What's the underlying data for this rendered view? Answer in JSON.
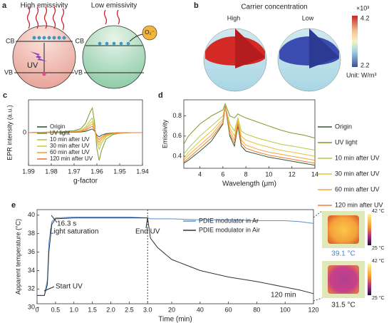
{
  "panels": {
    "a": {
      "label": "a",
      "left_title": "High emissivity",
      "right_title": "Low emissivity",
      "cb_left": "CB",
      "vb_left": "VB",
      "uv": "UV",
      "cb_right": "CB",
      "vb_right": "VB",
      "species": "O₂⁻"
    },
    "b": {
      "label": "b",
      "title": "Carrier concentration",
      "left": "High",
      "right": "Low",
      "scale": "×10³",
      "max": "4.2",
      "min": "2.2",
      "unit": "Unit: W/m³"
    }
  },
  "chart_data": [
    {
      "type": "line",
      "panel_label": "c",
      "xlabel": "g-factor",
      "ylabel": "EPR intensity (a.u.)",
      "x": [
        1.99,
        1.985,
        1.98,
        1.975,
        1.97,
        1.967,
        1.965,
        1.963,
        1.962,
        1.961,
        1.96,
        1.959,
        1.958,
        1.956,
        1.953,
        1.95,
        1.945,
        1.94
      ],
      "xlim": [
        1.99,
        1.94
      ],
      "xticks": [
        1.99,
        1.98,
        1.97,
        1.96,
        1.95,
        1.94
      ],
      "ylim": [
        -1,
        1
      ],
      "yticks": [
        0
      ],
      "series": [
        {
          "name": "Origin",
          "color": "#2d5a35",
          "values": [
            0,
            0,
            0,
            0,
            0.01,
            0.02,
            0.04,
            0.09,
            0.11,
            0.05,
            -0.08,
            -0.13,
            -0.08,
            -0.03,
            -0.01,
            0,
            0,
            0
          ]
        },
        {
          "name": "UV light",
          "color": "#7b9a2c",
          "values": [
            0,
            0.01,
            0.02,
            0.03,
            0.06,
            0.12,
            0.28,
            0.62,
            0.75,
            0.3,
            -0.5,
            -0.85,
            -0.55,
            -0.2,
            -0.06,
            -0.02,
            0,
            0
          ]
        },
        {
          "name": "10 min after UV",
          "color": "#b9c743",
          "values": [
            0,
            0.01,
            0.01,
            0.02,
            0.04,
            0.07,
            0.17,
            0.37,
            0.45,
            0.18,
            -0.3,
            -0.51,
            -0.33,
            -0.12,
            -0.04,
            -0.01,
            0,
            0
          ]
        },
        {
          "name": "30 min after UV",
          "color": "#e3c534",
          "values": [
            0,
            0,
            0.01,
            0.01,
            0.03,
            0.05,
            0.13,
            0.28,
            0.34,
            0.14,
            -0.23,
            -0.38,
            -0.25,
            -0.09,
            -0.03,
            -0.01,
            0,
            0
          ]
        },
        {
          "name": "60 min after UV",
          "color": "#f2a63a",
          "values": [
            0,
            0,
            0.01,
            0.01,
            0.02,
            0.04,
            0.1,
            0.22,
            0.26,
            0.11,
            -0.18,
            -0.3,
            -0.19,
            -0.07,
            -0.02,
            -0.01,
            0,
            0
          ]
        },
        {
          "name": "120 min after UV",
          "color": "#f07a38",
          "values": [
            0,
            0,
            0,
            0.01,
            0.02,
            0.03,
            0.07,
            0.16,
            0.19,
            0.08,
            -0.13,
            -0.21,
            -0.14,
            -0.05,
            -0.02,
            0,
            0,
            0
          ]
        }
      ]
    },
    {
      "type": "line",
      "panel_label": "d",
      "xlabel": "Wavelength (μm)",
      "ylabel": "Emissivity",
      "x": [
        2.6,
        3,
        4,
        5,
        6,
        6.2,
        6.6,
        7,
        7.3,
        7.6,
        8,
        9,
        10,
        11,
        12,
        13,
        14
      ],
      "xlim": [
        2.6,
        14
      ],
      "xticks": [
        4,
        6,
        8,
        10,
        12,
        14
      ],
      "ylim": [
        0.28,
        0.96
      ],
      "yticks": [
        0.4,
        0.6,
        0.8
      ],
      "series": [
        {
          "name": "Origin",
          "color": "#2d5a35",
          "values": [
            0.33,
            0.36,
            0.45,
            0.55,
            0.72,
            0.9,
            0.6,
            0.5,
            0.7,
            0.5,
            0.45,
            0.42,
            0.39,
            0.37,
            0.35,
            0.33,
            0.31
          ]
        },
        {
          "name": "UV light",
          "color": "#7b9a2c",
          "values": [
            0.52,
            0.6,
            0.72,
            0.8,
            0.86,
            0.92,
            0.8,
            0.78,
            0.82,
            0.8,
            0.78,
            0.74,
            0.7,
            0.66,
            0.63,
            0.61,
            0.58
          ]
        },
        {
          "name": "10 min after UV",
          "color": "#b9c743",
          "values": [
            0.42,
            0.48,
            0.6,
            0.7,
            0.8,
            0.9,
            0.72,
            0.65,
            0.78,
            0.65,
            0.62,
            0.58,
            0.55,
            0.52,
            0.5,
            0.48,
            0.46
          ]
        },
        {
          "name": "30 min after UV",
          "color": "#e3c534",
          "values": [
            0.38,
            0.44,
            0.55,
            0.65,
            0.77,
            0.9,
            0.68,
            0.6,
            0.76,
            0.6,
            0.56,
            0.52,
            0.49,
            0.46,
            0.44,
            0.42,
            0.4
          ]
        },
        {
          "name": "60 min after UV",
          "color": "#f2a63a",
          "values": [
            0.36,
            0.41,
            0.51,
            0.61,
            0.75,
            0.9,
            0.65,
            0.56,
            0.74,
            0.56,
            0.51,
            0.47,
            0.44,
            0.42,
            0.4,
            0.38,
            0.36
          ]
        },
        {
          "name": "120 min after UV",
          "color": "#f07a38",
          "values": [
            0.34,
            0.38,
            0.48,
            0.58,
            0.73,
            0.9,
            0.62,
            0.53,
            0.72,
            0.53,
            0.48,
            0.44,
            0.41,
            0.39,
            0.37,
            0.35,
            0.33
          ]
        }
      ]
    },
    {
      "type": "broken-line",
      "panel_label": "e",
      "xlabel": "Time (min)",
      "ylabel": "Apparent temperature (°C)",
      "x": [
        0,
        0.2,
        0.28,
        0.32,
        0.4,
        0.5,
        1,
        1.5,
        2,
        2.5,
        3,
        5,
        10,
        20,
        40,
        60,
        80,
        100,
        110,
        120
      ],
      "segments": [
        {
          "xlim": [
            0,
            3
          ],
          "xticks": [
            0,
            0.5,
            {
              "value": 1,
              "label": "1.0"
            },
            1.5,
            {
              "value": 2,
              "label": "2.0"
            },
            2.5,
            {
              "value": 3,
              "label": "3.0"
            }
          ]
        },
        {
          "xlim": [
            3,
            120
          ],
          "xticks": [
            20,
            40,
            60,
            80,
            100,
            120
          ]
        }
      ],
      "ylim": [
        30.4,
        40.6
      ],
      "yticks": [
        30,
        32,
        34,
        36,
        38,
        40
      ],
      "series": [
        {
          "name": "PDIE modulator in Ar",
          "color": "#5b8fd6",
          "values": [
            31.3,
            31.3,
            33,
            37,
            39.3,
            39.7,
            39.8,
            39.8,
            39.8,
            39.8,
            39.7,
            39.6,
            39.6,
            39.6,
            39.5,
            39.5,
            39.4,
            39.4,
            39.3,
            39.1
          ]
        },
        {
          "name": "PDIE modulator in Air",
          "color": "#333333",
          "values": [
            31.3,
            31.3,
            32.5,
            36,
            39,
            39.6,
            39.7,
            39.7,
            39.7,
            39.7,
            39.7,
            37.5,
            36.5,
            35.2,
            34,
            33.3,
            32.8,
            32.2,
            31.9,
            31.5
          ]
        }
      ],
      "annotations": [
        "16.3 s",
        "Light saturation",
        "End UV",
        "Start UV",
        "120 min"
      ],
      "thermal": {
        "max": "42 °C",
        "min": "25 °C",
        "ar": "39.1 °C",
        "air": "31.5 °C"
      }
    }
  ]
}
